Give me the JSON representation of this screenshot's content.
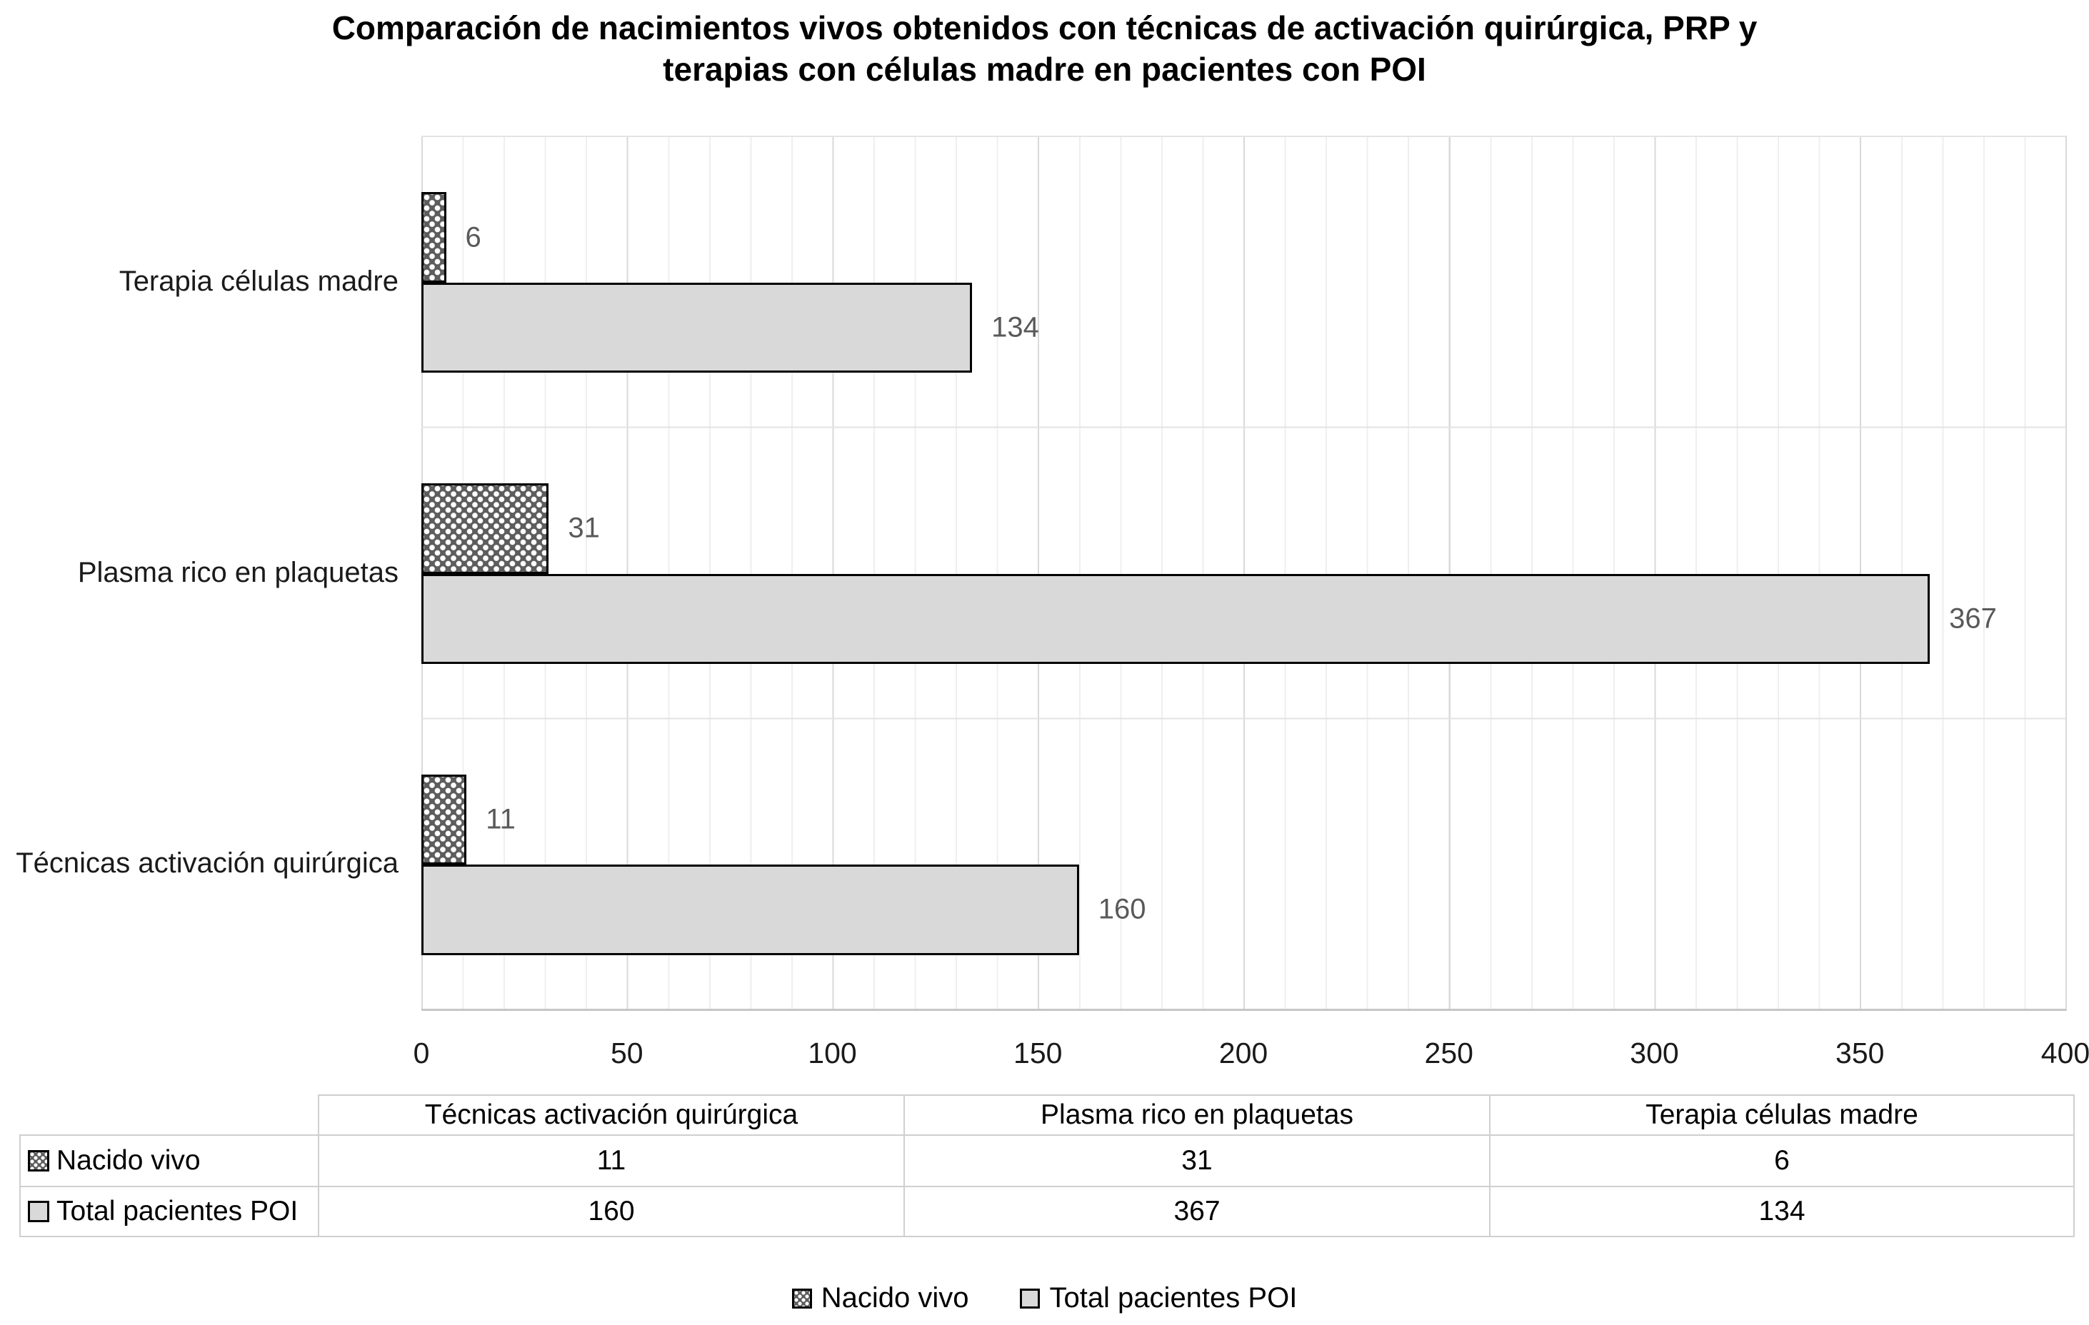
{
  "figure": {
    "title_lines": [
      "Comparación de nacimientos vivos obtenidos con técnicas de activación quirúrgica, PRP y",
      "terapias con células madre en pacientes con POI"
    ]
  },
  "chart_data": {
    "type": "bar",
    "orientation": "horizontal",
    "title": "Comparación de nacimientos vivos obtenidos con técnicas de activación quirúrgica, PRP y terapias con células madre en pacientes con POI",
    "categories": [
      "Técnicas activación quirúrgica",
      "Plasma rico en plaquetas",
      "Terapia células madre"
    ],
    "series": [
      {
        "name": "Nacido vivo",
        "values": [
          11,
          31,
          6
        ],
        "fill": "checker-dot-pattern",
        "color": "#5d5d5d"
      },
      {
        "name": "Total pacientes POI",
        "values": [
          160,
          367,
          134
        ],
        "fill": "solid",
        "color": "#d9d9d9"
      }
    ],
    "xlabel": "",
    "ylabel": "",
    "xlim": [
      0,
      400
    ],
    "x_ticks": [
      0,
      50,
      100,
      150,
      200,
      250,
      300,
      350,
      400
    ],
    "gridlines": {
      "major_interval": 50,
      "minor_interval": 10
    },
    "bar_order_top_to_bottom": [
      "Terapia células madre",
      "Plasma rico en plaquetas",
      "Técnicas activación quirúrgica"
    ],
    "data_labels": true,
    "legend_position": "bottom",
    "data_table_shown": true
  },
  "colors": {
    "bar_border": "#000000",
    "pattern_background": "#5d5d5d",
    "pattern_dot": "#ffffff",
    "total_fill": "#d9d9d9",
    "value_label": "#595959",
    "gridline_major": "#d9d9d9",
    "gridline_minor": "#efefef",
    "table_border": "#cfcfcf",
    "text": "#1a1a1a"
  }
}
